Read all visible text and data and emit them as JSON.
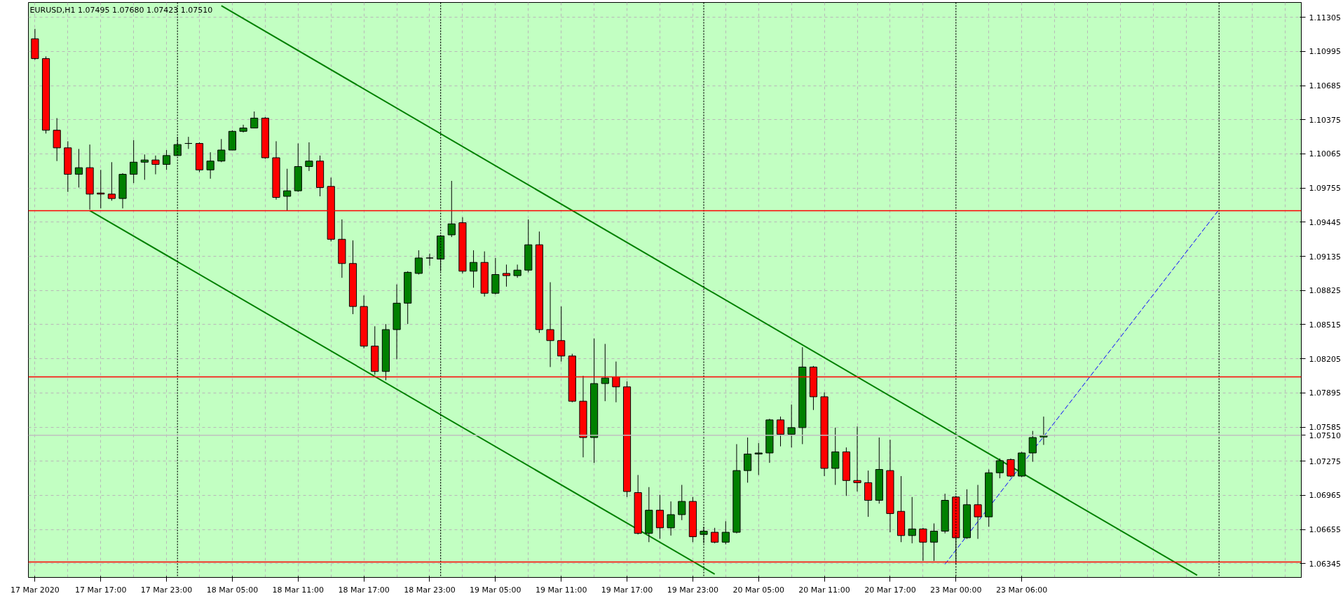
{
  "chart_data": {
    "type": "candlestick",
    "title": "EURUSD,H1  1.07495 1.07680 1.07423 1.07510",
    "categories": [
      "17 Mar 2020",
      null,
      null,
      null,
      null,
      null,
      "17 Mar 17:00",
      null,
      null,
      null,
      null,
      null,
      "17 Mar 23:00",
      null,
      null,
      null,
      null,
      null,
      "18 Mar 05:00",
      null,
      null,
      null,
      null,
      null,
      "18 Mar 11:00",
      null,
      null,
      null,
      null,
      null,
      "18 Mar 17:00",
      null,
      null,
      null,
      null,
      null,
      "18 Mar 23:00",
      null,
      null,
      null,
      null,
      null,
      "19 Mar 05:00",
      null,
      null,
      null,
      null,
      null,
      "19 Mar 11:00",
      null,
      null,
      null,
      null,
      null,
      "19 Mar 17:00",
      null,
      null,
      null,
      null,
      null,
      "19 Mar 23:00",
      null,
      null,
      null,
      null,
      null,
      "20 Mar 05:00",
      null,
      null,
      null,
      null,
      null,
      "20 Mar 11:00",
      null,
      null,
      null,
      null,
      null,
      "20 Mar 17:00",
      null,
      null,
      null,
      null,
      null,
      "23 Mar 00:00",
      null,
      null,
      null,
      null,
      null,
      "23 Mar 06:00",
      null,
      null,
      null,
      null,
      null,
      null,
      null,
      null,
      null,
      null,
      null,
      null,
      null,
      null,
      null,
      null,
      null,
      null,
      null,
      null,
      null,
      null,
      null,
      null,
      null
    ],
    "ohlc": [
      [
        1.1111,
        1.112,
        1.1092,
        1.1093
      ],
      [
        1.1093,
        1.1095,
        1.1025,
        1.1028
      ],
      [
        1.1028,
        1.1039,
        1.1,
        1.1012
      ],
      [
        1.1012,
        1.1018,
        1.0972,
        1.0988
      ],
      [
        1.0988,
        1.1011,
        1.0976,
        1.0994
      ],
      [
        1.0994,
        1.1015,
        1.0956,
        1.097
      ],
      [
        1.0971,
        1.0992,
        1.0957,
        1.097
      ],
      [
        1.097,
        1.0999,
        1.0964,
        1.0966
      ],
      [
        1.0966,
        1.0989,
        1.0957,
        1.0988
      ],
      [
        1.0988,
        1.1019,
        1.098,
        1.0999
      ],
      [
        1.0999,
        1.1006,
        1.0983,
        1.1001
      ],
      [
        1.1001,
        1.1005,
        1.0988,
        1.0997
      ],
      [
        1.0997,
        1.101,
        1.0992,
        1.1005
      ],
      [
        1.1005,
        1.1022,
        1.1005,
        1.1015
      ],
      [
        1.1016,
        1.1022,
        1.1011,
        1.1016
      ],
      [
        1.1016,
        1.1017,
        1.099,
        1.0992
      ],
      [
        1.0992,
        1.1008,
        1.0984,
        1.1
      ],
      [
        1.1,
        1.102,
        1.0999,
        1.101
      ],
      [
        1.101,
        1.1028,
        1.101,
        1.1027
      ],
      [
        1.1027,
        1.1033,
        1.1026,
        1.103
      ],
      [
        1.103,
        1.1045,
        1.103,
        1.1039
      ],
      [
        1.1039,
        1.104,
        1.1002,
        1.1003
      ],
      [
        1.1003,
        1.1018,
        1.0965,
        1.0967
      ],
      [
        1.0968,
        1.0993,
        1.0955,
        1.0973
      ],
      [
        1.0973,
        1.1016,
        1.0972,
        1.0995
      ],
      [
        1.0995,
        1.1017,
        1.0991,
        1.1
      ],
      [
        1.1,
        1.1005,
        1.0968,
        1.0976
      ],
      [
        1.0977,
        1.0985,
        1.0927,
        1.0929
      ],
      [
        1.0929,
        1.0947,
        1.0894,
        1.0907
      ],
      [
        1.0907,
        1.0928,
        1.0861,
        1.0868
      ],
      [
        1.0868,
        1.0878,
        1.083,
        1.0832
      ],
      [
        1.0832,
        1.085,
        1.0806,
        1.0809
      ],
      [
        1.0809,
        1.0852,
        1.0801,
        1.0847
      ],
      [
        1.0847,
        1.0888,
        1.082,
        1.0871
      ],
      [
        1.0871,
        1.09,
        1.0852,
        1.0899
      ],
      [
        1.0898,
        1.0919,
        1.0897,
        1.0912
      ],
      [
        1.0912,
        1.0916,
        1.0905,
        1.0912
      ],
      [
        1.0911,
        1.0933,
        1.09,
        1.0932
      ],
      [
        1.0933,
        1.0982,
        1.0931,
        1.0943
      ],
      [
        1.0944,
        1.0949,
        1.0898,
        1.09
      ],
      [
        1.09,
        1.0919,
        1.0885,
        1.0908
      ],
      [
        1.0908,
        1.0918,
        1.0877,
        1.088
      ],
      [
        1.088,
        1.0912,
        1.0879,
        1.0897
      ],
      [
        1.0898,
        1.0906,
        1.0886,
        1.0896
      ],
      [
        1.0896,
        1.0906,
        1.0894,
        1.0901
      ],
      [
        1.0901,
        1.0947,
        1.0899,
        1.0924
      ],
      [
        1.0924,
        1.0936,
        1.0844,
        1.0847
      ],
      [
        1.0847,
        1.089,
        1.0813,
        1.0837
      ],
      [
        1.0837,
        1.0868,
        1.0818,
        1.0823
      ],
      [
        1.0823,
        1.0825,
        1.0781,
        1.0782
      ],
      [
        1.0782,
        1.0805,
        1.0731,
        1.0749
      ],
      [
        1.0749,
        1.0839,
        1.0726,
        1.0798
      ],
      [
        1.0798,
        1.0834,
        1.0782,
        1.0803
      ],
      [
        1.0804,
        1.0818,
        1.0781,
        1.0795
      ],
      [
        1.0795,
        1.08,
        1.0695,
        1.07
      ],
      [
        1.0699,
        1.0715,
        1.0661,
        1.0662
      ],
      [
        1.0662,
        1.0704,
        1.0654,
        1.0683
      ],
      [
        1.0683,
        1.0697,
        1.0657,
        1.0667
      ],
      [
        1.0667,
        1.0691,
        1.066,
        1.0679
      ],
      [
        1.0679,
        1.0706,
        1.0674,
        1.0691
      ],
      [
        1.0691,
        1.0695,
        1.0654,
        1.0659
      ],
      [
        1.0661,
        1.0668,
        1.0653,
        1.0664
      ],
      [
        1.0663,
        1.0667,
        1.0653,
        1.0654
      ],
      [
        1.0654,
        1.0673,
        1.0652,
        1.0663
      ],
      [
        1.0663,
        1.0743,
        1.0662,
        1.0719
      ],
      [
        1.0719,
        1.0749,
        1.0708,
        1.0734
      ],
      [
        1.0734,
        1.0744,
        1.0715,
        1.0735
      ],
      [
        1.0735,
        1.0766,
        1.0726,
        1.0765
      ],
      [
        1.0765,
        1.0768,
        1.0741,
        1.0752
      ],
      [
        1.0752,
        1.0779,
        1.074,
        1.0758
      ],
      [
        1.0758,
        1.0831,
        1.0743,
        1.0813
      ],
      [
        1.0813,
        1.0814,
        1.0774,
        1.0786
      ],
      [
        1.0786,
        1.079,
        1.0714,
        1.0721
      ],
      [
        1.0721,
        1.0758,
        1.0706,
        1.0736
      ],
      [
        1.0736,
        1.074,
        1.0696,
        1.071
      ],
      [
        1.071,
        1.0759,
        1.07,
        1.0708
      ],
      [
        1.0708,
        1.0719,
        1.0677,
        1.0692
      ],
      [
        1.0692,
        1.0749,
        1.0689,
        1.072
      ],
      [
        1.0719,
        1.0747,
        1.0663,
        1.068
      ],
      [
        1.0682,
        1.0714,
        1.0654,
        1.066
      ],
      [
        1.066,
        1.0695,
        1.0653,
        1.0666
      ],
      [
        1.0666,
        1.0667,
        1.0637,
        1.0654
      ],
      [
        1.0654,
        1.0671,
        1.0637,
        1.0664
      ],
      [
        1.0664,
        1.0698,
        1.0662,
        1.0692
      ],
      [
        1.0695,
        1.0696,
        1.0634,
        1.0658
      ],
      [
        1.0658,
        1.0702,
        1.0657,
        1.0688
      ],
      [
        1.0688,
        1.0706,
        1.0657,
        1.0677
      ],
      [
        1.0677,
        1.072,
        1.0668,
        1.0717
      ],
      [
        1.0717,
        1.073,
        1.0712,
        1.0728
      ],
      [
        1.0729,
        1.073,
        1.0713,
        1.0714
      ],
      [
        1.0714,
        1.0736,
        1.0713,
        1.0735
      ],
      [
        1.0735,
        1.0755,
        1.0727,
        1.0749
      ],
      [
        1.07495,
        1.0768,
        1.07423,
        1.0751
      ],
      null,
      null,
      null,
      null,
      null,
      null,
      null,
      null,
      null,
      null,
      null,
      null,
      null,
      null,
      null,
      null,
      null,
      null,
      null,
      null,
      null,
      null,
      null
    ],
    "colors": [
      "#ff0000",
      "#ff0000",
      "#ff0000",
      "#ff0000",
      "#008000",
      "#ff0000",
      "#ff0000",
      "#ff0000",
      "#008000",
      "#008000",
      "#008000",
      "#ff0000",
      "#008000",
      "#008000",
      "#000000",
      "#ff0000",
      "#008000",
      "#008000",
      "#008000",
      "#008000",
      "#008000",
      "#ff0000",
      "#ff0000",
      "#008000",
      "#008000",
      "#008000",
      "#ff0000",
      "#ff0000",
      "#ff0000",
      "#ff0000",
      "#ff0000",
      "#ff0000",
      "#008000",
      "#008000",
      "#008000",
      "#008000",
      "#000000",
      "#008000",
      "#008000",
      "#ff0000",
      "#008000",
      "#ff0000",
      "#008000",
      "#ff0000",
      "#008000",
      "#008000",
      "#ff0000",
      "#ff0000",
      "#ff0000",
      "#ff0000",
      "#ff0000",
      "#008000",
      "#008000",
      "#ff0000",
      "#ff0000",
      "#ff0000",
      "#008000",
      "#ff0000",
      "#008000",
      "#008000",
      "#ff0000",
      "#008000",
      "#ff0000",
      "#008000",
      "#008000",
      "#008000",
      "#008000",
      "#008000",
      "#ff0000",
      "#008000",
      "#008000",
      "#ff0000",
      "#ff0000",
      "#008000",
      "#ff0000",
      "#ff0000",
      "#ff0000",
      "#008000",
      "#ff0000",
      "#ff0000",
      "#008000",
      "#ff0000",
      "#008000",
      "#008000",
      "#ff0000",
      "#008000",
      "#ff0000",
      "#008000",
      "#008000",
      "#ff0000",
      "#008000",
      "#008000",
      "#008000",
      null,
      null,
      null,
      null,
      null,
      null,
      null,
      null,
      null,
      null,
      null,
      null,
      null,
      null,
      null,
      null,
      null,
      null,
      null,
      null,
      null,
      null,
      null
    ],
    "series": [
      {
        "type": "line",
        "color": "#008000",
        "line_style": "solid",
        "values": [
          null,
          null,
          null,
          null,
          null,
          null,
          null,
          null,
          null,
          null,
          null,
          null,
          null,
          null,
          null,
          null,
          null,
          1.1141,
          null,
          null,
          null,
          null,
          null,
          null,
          null,
          null,
          null,
          null,
          null,
          null,
          null,
          null,
          null,
          null,
          null,
          null,
          null,
          null,
          null,
          null,
          null,
          null,
          null,
          null,
          null,
          null,
          null,
          null,
          null,
          null,
          null,
          null,
          null,
          null,
          null,
          null,
          null,
          null,
          null,
          null,
          null,
          null,
          null,
          null,
          null,
          null,
          null,
          null,
          null,
          null,
          null,
          null,
          null,
          null,
          null,
          null,
          null,
          null,
          null,
          null,
          null,
          null,
          null,
          null,
          null,
          null,
          null,
          null,
          null,
          null,
          null,
          null,
          null,
          null,
          null,
          null,
          null,
          null,
          null,
          null,
          null,
          null,
          null,
          null,
          null,
          null,
          1.0624,
          null,
          null,
          null,
          null,
          null,
          null,
          null,
          null,
          null
        ]
      },
      {
        "type": "line",
        "color": "#008000",
        "line_style": "solid",
        "values": [
          null,
          null,
          null,
          null,
          null,
          1.0955,
          null,
          null,
          null,
          null,
          null,
          null,
          null,
          null,
          null,
          null,
          null,
          null,
          null,
          null,
          null,
          null,
          null,
          null,
          null,
          null,
          null,
          null,
          null,
          null,
          null,
          null,
          null,
          null,
          null,
          null,
          null,
          null,
          null,
          null,
          null,
          null,
          null,
          null,
          null,
          null,
          null,
          null,
          null,
          null,
          null,
          null,
          null,
          null,
          null,
          null,
          null,
          null,
          null,
          null,
          null,
          null,
          1.0625,
          null,
          null,
          null,
          null,
          null,
          null,
          null,
          null,
          null,
          null,
          null,
          null,
          null,
          null,
          null,
          null,
          null,
          null,
          null,
          null,
          null,
          null,
          null,
          null,
          null,
          null,
          null,
          null,
          null,
          null,
          null,
          null,
          null,
          null,
          null,
          null,
          null,
          null,
          null,
          null,
          null,
          null,
          null,
          null,
          null,
          null,
          null,
          null,
          null,
          null,
          null,
          null,
          null
        ]
      },
      {
        "type": "line",
        "color": "#0000ff",
        "line_style": "dashed",
        "values": [
          null,
          null,
          null,
          null,
          null,
          null,
          null,
          null,
          null,
          null,
          null,
          null,
          null,
          null,
          null,
          null,
          null,
          null,
          null,
          null,
          null,
          null,
          null,
          null,
          null,
          null,
          null,
          null,
          null,
          null,
          null,
          null,
          null,
          null,
          null,
          null,
          null,
          null,
          null,
          null,
          null,
          null,
          null,
          null,
          null,
          null,
          null,
          null,
          null,
          null,
          null,
          null,
          null,
          null,
          null,
          null,
          null,
          null,
          null,
          null,
          null,
          null,
          null,
          null,
          null,
          null,
          null,
          null,
          null,
          null,
          null,
          null,
          null,
          null,
          null,
          null,
          null,
          null,
          null,
          null,
          null,
          null,
          null,
          1.0634,
          null,
          null,
          null,
          null,
          null,
          null,
          null,
          null,
          null,
          null,
          null,
          null,
          null,
          null,
          null,
          null,
          null,
          null,
          null,
          null,
          null,
          null,
          null,
          null,
          1.0956,
          null,
          null,
          null,
          null,
          null,
          null,
          null
        ]
      }
    ],
    "ylim": [
      1.0622,
      1.1144
    ],
    "yticks": [
      1.06345,
      1.06655,
      1.06965,
      1.07275,
      1.07585,
      1.07895,
      1.08205,
      1.08515,
      1.08825,
      1.09135,
      1.09445,
      1.09755,
      1.10065,
      1.10375,
      1.10685,
      1.10995,
      1.11305
    ],
    "grid": true,
    "ref_lines": [
      {
        "axis": "y",
        "value": 1.0955,
        "color": "#ff0000",
        "line_style": "solid"
      },
      {
        "axis": "y",
        "value": 1.0804,
        "color": "#ff0000",
        "line_style": "solid"
      },
      {
        "axis": "y",
        "value": 1.0636,
        "color": "#ff0000",
        "line_style": "solid"
      },
      {
        "axis": "y",
        "value": 1.0751,
        "color": "#c0c0c0",
        "line_style": "solid",
        "label": "1.07510"
      }
    ]
  }
}
